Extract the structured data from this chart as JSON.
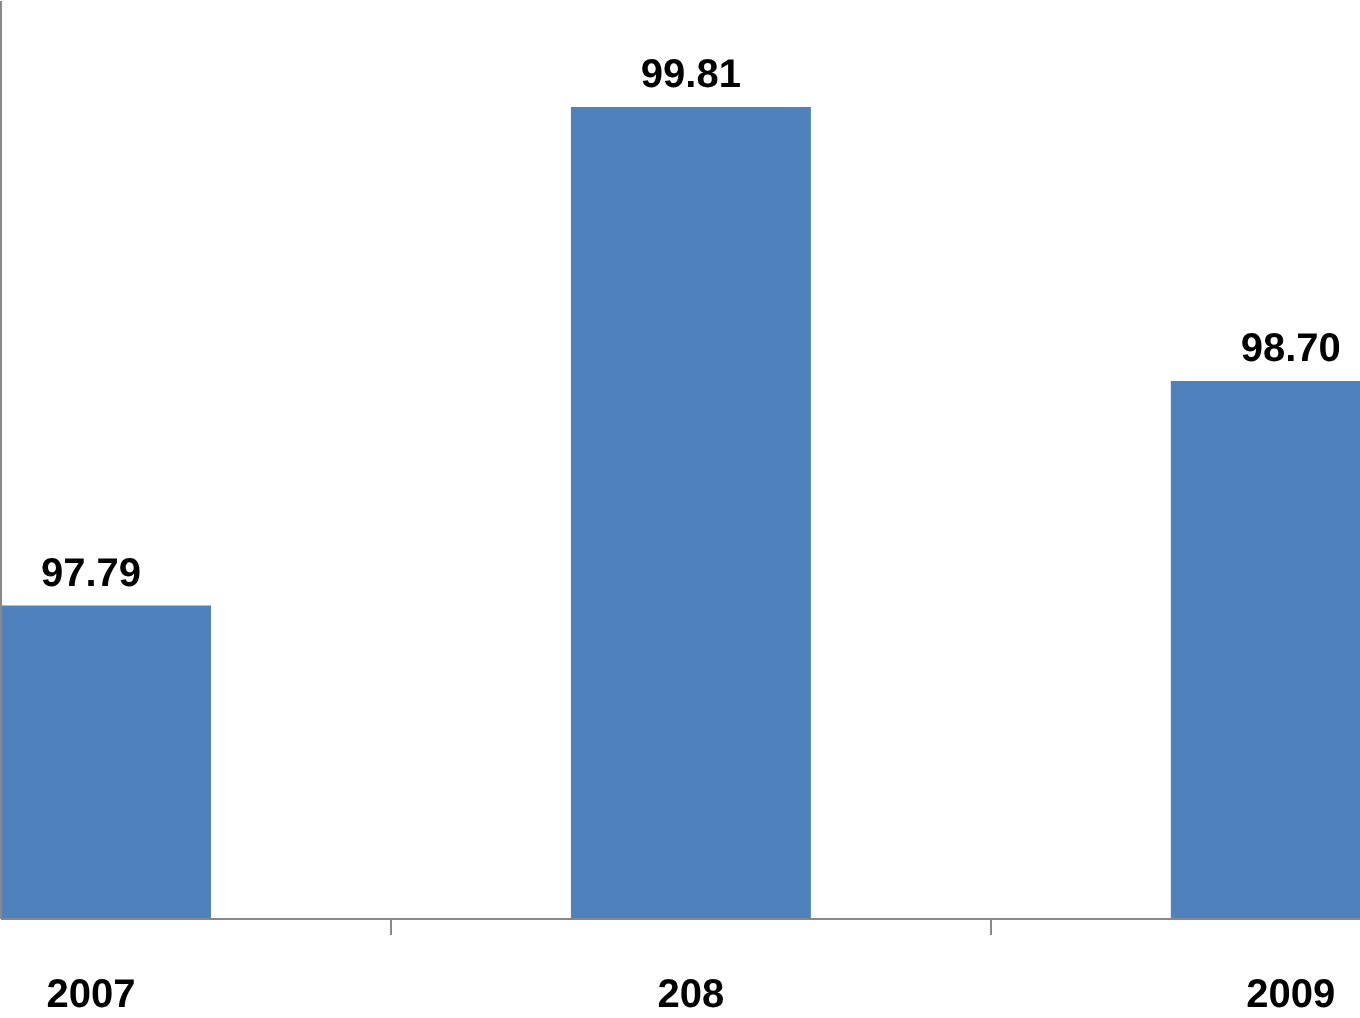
{
  "chart_data": {
    "type": "bar",
    "categories": [
      "2007",
      "208",
      "2009"
    ],
    "values": [
      97.79,
      99.81,
      98.7
    ],
    "value_labels": [
      "97.79",
      "99.81",
      "98.70"
    ],
    "color": "#4f81bd",
    "ylim": [
      96.52,
      100.24
    ],
    "grid": false,
    "tick_labels": "x"
  }
}
